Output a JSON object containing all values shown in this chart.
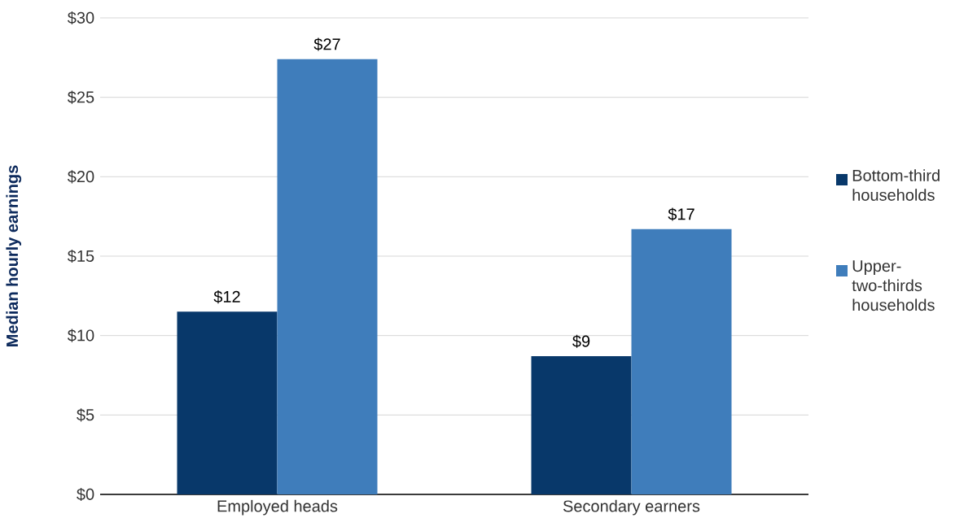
{
  "chart_data": {
    "type": "bar",
    "ylabel": "Median hourly earnings",
    "categories": [
      "Employed heads",
      "Secondary earners"
    ],
    "series": [
      {
        "name": "Bottom-third households",
        "color": "#08386a",
        "values": [
          11.5,
          8.7
        ],
        "value_labels": [
          "$12",
          "$9"
        ]
      },
      {
        "name": "Upper-two-thirds households",
        "color": "#3f7dbb",
        "values": [
          27.4,
          16.7
        ],
        "value_labels": [
          "$27",
          "$17"
        ]
      }
    ],
    "ylim": [
      0,
      30
    ],
    "yticks": [
      {
        "value": 0,
        "label": "$0"
      },
      {
        "value": 5,
        "label": "$5"
      },
      {
        "value": 10,
        "label": "$10"
      },
      {
        "value": 15,
        "label": "$15"
      },
      {
        "value": 20,
        "label": "$20"
      },
      {
        "value": 25,
        "label": "$25"
      },
      {
        "value": 30,
        "label": "$30"
      }
    ],
    "grid": "y",
    "legend": "right"
  }
}
